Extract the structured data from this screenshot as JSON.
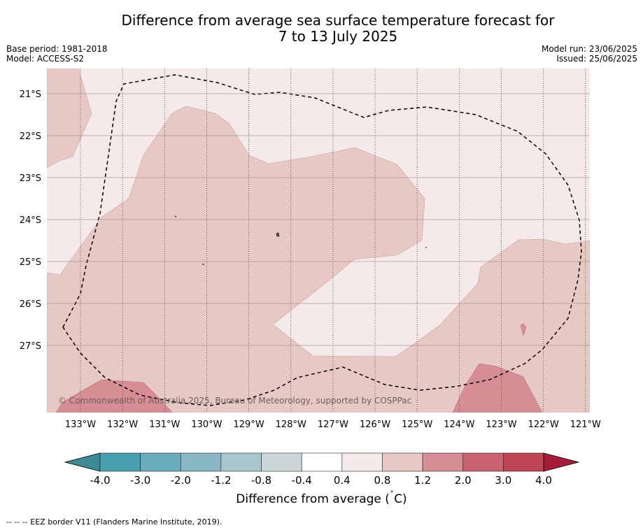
{
  "title_line1": "Difference from average sea surface temperature forecast for",
  "title_line2": "7 to 13 July 2025",
  "base_period": "Base period: 1981-2018",
  "model": "Model: ACCESS-S2",
  "model_run": "Model run: 23/06/2025",
  "issued": "Issued: 25/06/2025",
  "copyright": "© Commonwealth of Australia 2025, Bureau of Meteorology, supported by COSPPac",
  "latitudes": [
    "21°S",
    "22°S",
    "23°S",
    "24°S",
    "25°S",
    "26°S",
    "27°S"
  ],
  "longitudes": [
    "133°W",
    "132°W",
    "131°W",
    "130°W",
    "129°W",
    "128°W",
    "127°W",
    "126°W",
    "125°W",
    "124°W",
    "123°W",
    "122°W",
    "121°W"
  ],
  "colorbar": {
    "ticks": [
      "-4.0",
      "-3.0",
      "-2.0",
      "-1.2",
      "-0.8",
      "-0.4",
      "0.4",
      "0.8",
      "1.2",
      "2.0",
      "3.0",
      "4.0"
    ],
    "colors": [
      "#3d8a96",
      "#47a0b0",
      "#6aacbb",
      "#88b6c3",
      "#a8c7cc",
      "#ccd7d9",
      "#ffffff",
      "#f5e9e9",
      "#e8c8c5",
      "#d68d94",
      "#c9636f",
      "#bd4455",
      "#a81c3a"
    ],
    "label_text": "Difference from average (",
    "label_unit": "∘",
    "label_tail": "C)"
  },
  "footer": "--  --  -- EEZ border V11 (Flanders Marine Institute, 2019)."
}
